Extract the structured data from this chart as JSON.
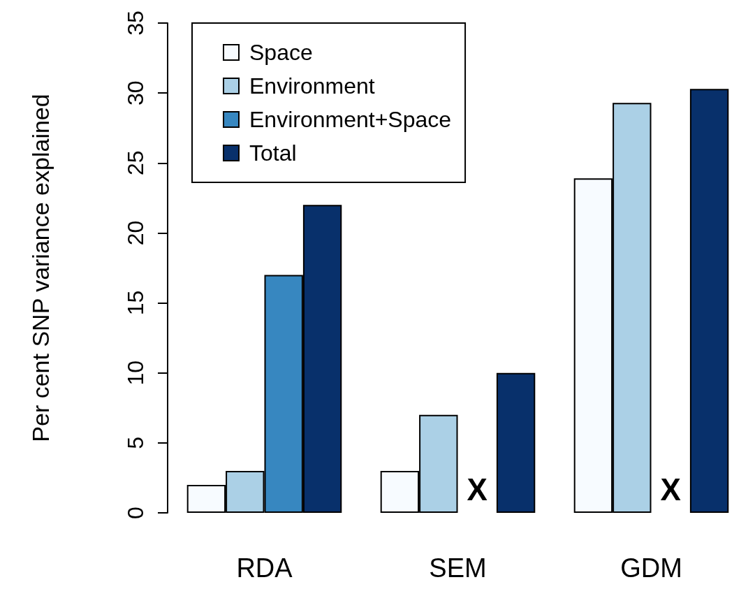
{
  "chart_data": {
    "type": "bar",
    "ylabel": "Per cent SNP variance explained",
    "categories": [
      "RDA",
      "SEM",
      "GDM"
    ],
    "series": [
      {
        "name": "Space",
        "color": "#f7fbff",
        "values": [
          2,
          3,
          23.9
        ]
      },
      {
        "name": "Environment",
        "color": "#abd0e6",
        "values": [
          3,
          7,
          29.3
        ]
      },
      {
        "name": "Environment+Space",
        "color": "#3787c0",
        "values": [
          17,
          null,
          null
        ]
      },
      {
        "name": "Total",
        "color": "#08306b",
        "values": [
          22,
          10,
          30.3
        ]
      }
    ],
    "ylim": [
      0,
      35
    ],
    "yticks": [
      0,
      5,
      10,
      15,
      20,
      25,
      30,
      35
    ],
    "grid": false,
    "legend": "top left",
    "annotations": [
      {
        "text": "X",
        "x": "SEM",
        "y": 0
      },
      {
        "text": "X",
        "x": "GDM",
        "y": 0
      }
    ]
  }
}
